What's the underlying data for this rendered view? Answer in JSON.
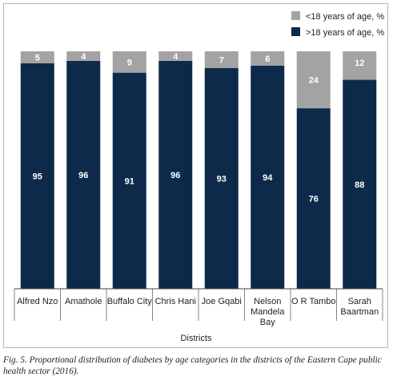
{
  "chart_data": {
    "type": "bar",
    "stacked": true,
    "categories": [
      [
        "Alfred Nzo"
      ],
      [
        "Amathole"
      ],
      [
        "Buffalo City"
      ],
      [
        "Chris Hani"
      ],
      [
        "Joe Gqabi"
      ],
      [
        "Nelson",
        "Mandela",
        "Bay"
      ],
      [
        "O R Tambo"
      ],
      [
        "Sarah",
        "Baartman"
      ]
    ],
    "series": [
      {
        "name": ">18 years of age, %",
        "color": "#0d2a4a",
        "label_color": "#ffffff",
        "values": [
          95,
          96,
          91,
          96,
          93,
          94,
          76,
          88
        ]
      },
      {
        "name": "<18 years of age, %",
        "color": "#a3a3a3",
        "label_color": "#ffffff",
        "values": [
          5,
          4,
          9,
          4,
          7,
          6,
          24,
          12
        ]
      }
    ],
    "xlabel": "Districts",
    "ylim": [
      0,
      100
    ],
    "grid": false,
    "legend_position": "top-right",
    "legend_order": [
      1,
      0
    ],
    "title": ""
  },
  "caption": "Fig. 5. Proportional distribution of diabetes by age categories in the districts of the Eastern Cape public health sector (2016)."
}
